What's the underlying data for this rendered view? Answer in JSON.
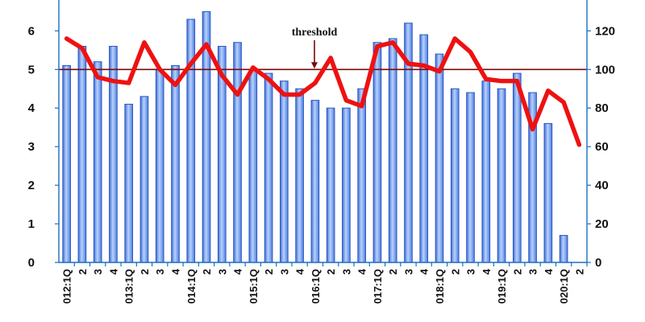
{
  "chart_data": {
    "type": "bar+line",
    "title": "",
    "xlabel": "",
    "ylabel_left": "",
    "ylabel_right": "",
    "categories": [
      "012:1Q",
      "2",
      "3",
      "4",
      "013:1Q",
      "2",
      "3",
      "4",
      "014:1Q",
      "2",
      "3",
      "4",
      "015:1Q",
      "2",
      "3",
      "4",
      "016:1Q",
      "2",
      "3",
      "4",
      "017:1Q",
      "2",
      "3",
      "4",
      "018:1Q",
      "2",
      "3",
      "4",
      "019:1Q",
      "2",
      "3",
      "4",
      "020:1Q",
      "2"
    ],
    "series": [
      {
        "type": "bar",
        "axis": "left",
        "values": [
          5.1,
          5.6,
          5.2,
          5.6,
          4.1,
          4.3,
          5.0,
          5.1,
          6.3,
          6.5,
          5.6,
          5.7,
          5.0,
          4.9,
          4.7,
          4.5,
          4.2,
          4.0,
          4.0,
          4.5,
          5.7,
          5.8,
          6.2,
          5.9,
          5.4,
          4.5,
          4.4,
          4.7,
          4.5,
          4.9,
          4.4,
          3.6,
          0.7,
          null
        ],
        "color": "#6f9ee8"
      },
      {
        "type": "line",
        "axis": "right",
        "values": [
          116,
          111,
          96,
          94,
          93,
          114,
          100,
          92,
          103,
          113,
          97,
          87,
          101,
          95,
          87,
          87,
          93,
          106,
          84,
          81,
          112,
          114,
          103,
          102,
          99,
          116,
          109,
          95,
          94,
          94,
          69,
          89,
          83,
          61
        ],
        "color": "#ee1111"
      }
    ],
    "y_left": {
      "lim": [
        0,
        6.8
      ],
      "ticks": [
        0,
        1,
        2,
        3,
        4,
        5,
        6
      ]
    },
    "y_right": {
      "lim": [
        0,
        136
      ],
      "ticks": [
        0,
        20,
        40,
        60,
        80,
        100,
        120
      ]
    },
    "threshold": {
      "value": 100,
      "axis": "right",
      "label": "threshold",
      "color": "#7a0a0a"
    },
    "grid": false,
    "legend": "none"
  }
}
